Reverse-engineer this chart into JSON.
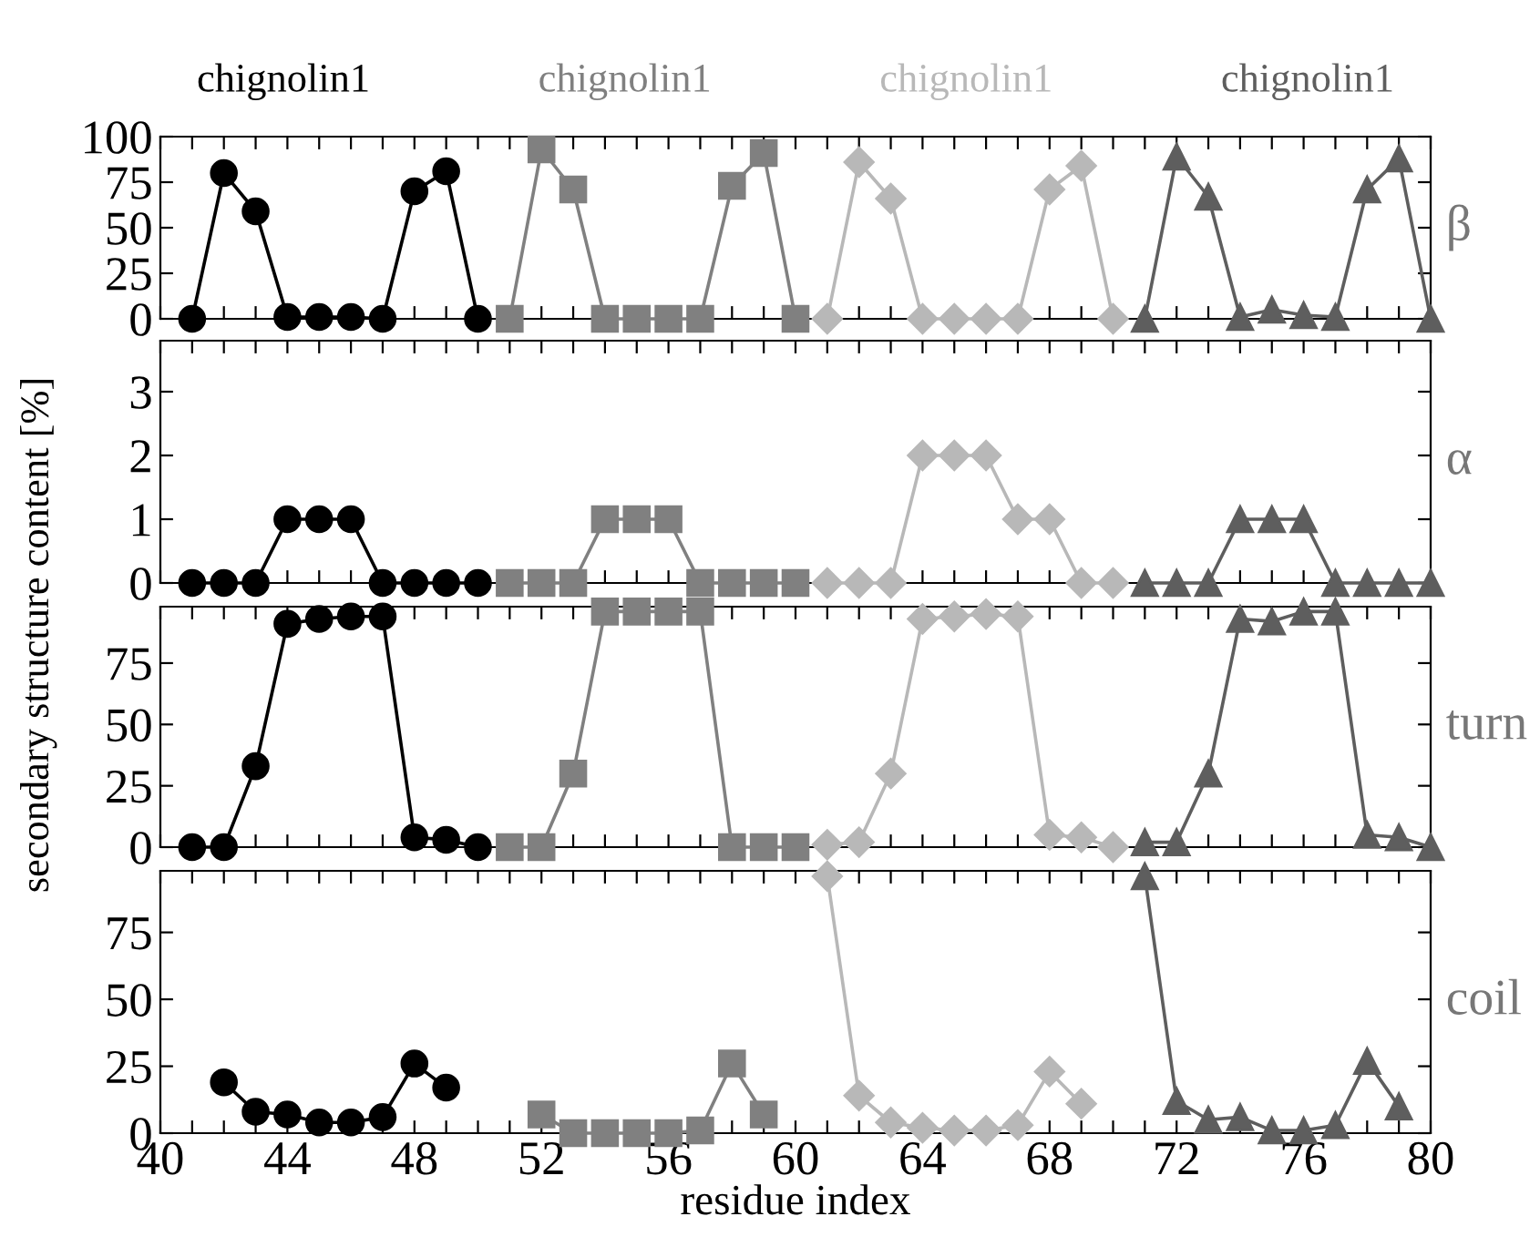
{
  "chart_data": [
    {
      "type": "line",
      "ylabel": "secondary structure content [%]",
      "annotations": [
        "β"
      ],
      "xlim": [
        40,
        80
      ],
      "ylim": [
        0,
        100
      ],
      "yticks": [
        0,
        25,
        50,
        75,
        100
      ],
      "tick_labels": "y",
      "grid": false,
      "legend": "top",
      "xticks": [
        40,
        {
          "value": 41,
          "label": null
        },
        {
          "value": 42,
          "label": null
        },
        {
          "value": 43,
          "label": null
        },
        44,
        {
          "value": 45,
          "label": null
        },
        {
          "value": 46,
          "label": null
        },
        {
          "value": 47,
          "label": null
        },
        48,
        {
          "value": 49,
          "label": null
        },
        {
          "value": 50,
          "label": null
        },
        {
          "value": 51,
          "label": null
        },
        52,
        {
          "value": 53,
          "label": null
        },
        {
          "value": 54,
          "label": null
        },
        {
          "value": 55,
          "label": null
        },
        56,
        {
          "value": 57,
          "label": null
        },
        {
          "value": 58,
          "label": null
        },
        {
          "value": 59,
          "label": null
        },
        60,
        {
          "value": 61,
          "label": null
        },
        {
          "value": 62,
          "label": null
        },
        {
          "value": 63,
          "label": null
        },
        64,
        {
          "value": 65,
          "label": null
        },
        {
          "value": 66,
          "label": null
        },
        {
          "value": 67,
          "label": null
        },
        68,
        {
          "value": 69,
          "label": null
        },
        {
          "value": 70,
          "label": null
        },
        {
          "value": 71,
          "label": null
        },
        72,
        {
          "value": 73,
          "label": null
        },
        {
          "value": 74,
          "label": null
        },
        {
          "value": 75,
          "label": null
        },
        76,
        {
          "value": 77,
          "label": null
        },
        {
          "value": 78,
          "label": null
        },
        {
          "value": 79,
          "label": null
        },
        80
      ],
      "series": [
        {
          "name": "chignolin1",
          "color": "#000000",
          "marker": "circle",
          "x": [
            41,
            42,
            43,
            44,
            45,
            46,
            47,
            48,
            49,
            50
          ],
          "values": [
            0,
            80,
            59,
            1,
            1,
            1,
            0,
            70,
            81,
            0
          ]
        },
        {
          "name": "chignolin1",
          "color": "#808080",
          "marker": "square",
          "x": [
            51,
            52,
            53,
            54,
            55,
            56,
            57,
            58,
            59,
            60
          ],
          "values": [
            0,
            93,
            71,
            0,
            0,
            0,
            0,
            73,
            91,
            0
          ]
        },
        {
          "name": "chignolin1",
          "color": "#b8b8b8",
          "marker": "diamond",
          "x": [
            61,
            62,
            63,
            64,
            65,
            66,
            67,
            68,
            69,
            70
          ],
          "values": [
            0,
            86,
            66,
            0,
            0,
            0,
            0,
            71,
            84,
            0
          ]
        },
        {
          "name": "chignolin1",
          "color": "#5e5e5e",
          "marker": "triangle",
          "x": [
            71,
            72,
            73,
            74,
            75,
            76,
            77,
            78,
            79,
            80
          ],
          "values": [
            0,
            89,
            67,
            1,
            5,
            2,
            1,
            71,
            88,
            0
          ]
        }
      ]
    },
    {
      "type": "line",
      "annotations": [
        "α"
      ],
      "xlim": [
        40,
        80
      ],
      "ylim": [
        0,
        3.8
      ],
      "yticks": [
        0,
        1,
        2,
        3
      ],
      "tick_labels": "y",
      "grid": false,
      "legend": false,
      "xticks": [
        40,
        {
          "value": 41,
          "label": null
        },
        {
          "value": 42,
          "label": null
        },
        {
          "value": 43,
          "label": null
        },
        44,
        {
          "value": 45,
          "label": null
        },
        {
          "value": 46,
          "label": null
        },
        {
          "value": 47,
          "label": null
        },
        48,
        {
          "value": 49,
          "label": null
        },
        {
          "value": 50,
          "label": null
        },
        {
          "value": 51,
          "label": null
        },
        52,
        {
          "value": 53,
          "label": null
        },
        {
          "value": 54,
          "label": null
        },
        {
          "value": 55,
          "label": null
        },
        56,
        {
          "value": 57,
          "label": null
        },
        {
          "value": 58,
          "label": null
        },
        {
          "value": 59,
          "label": null
        },
        60,
        {
          "value": 61,
          "label": null
        },
        {
          "value": 62,
          "label": null
        },
        {
          "value": 63,
          "label": null
        },
        64,
        {
          "value": 65,
          "label": null
        },
        {
          "value": 66,
          "label": null
        },
        {
          "value": 67,
          "label": null
        },
        68,
        {
          "value": 69,
          "label": null
        },
        {
          "value": 70,
          "label": null
        },
        {
          "value": 71,
          "label": null
        },
        72,
        {
          "value": 73,
          "label": null
        },
        {
          "value": 74,
          "label": null
        },
        {
          "value": 75,
          "label": null
        },
        76,
        {
          "value": 77,
          "label": null
        },
        {
          "value": 78,
          "label": null
        },
        {
          "value": 79,
          "label": null
        },
        80
      ],
      "series": [
        {
          "color": "#000000",
          "marker": "circle",
          "x": [
            41,
            42,
            43,
            44,
            45,
            46,
            47,
            48,
            49,
            50
          ],
          "values": [
            0,
            0,
            0,
            1,
            1,
            1,
            0,
            0,
            0,
            0
          ]
        },
        {
          "color": "#808080",
          "marker": "square",
          "x": [
            51,
            52,
            53,
            54,
            55,
            56,
            57,
            58,
            59,
            60
          ],
          "values": [
            0,
            0,
            0,
            1,
            1,
            1,
            0,
            0,
            0,
            0
          ]
        },
        {
          "color": "#b8b8b8",
          "marker": "diamond",
          "x": [
            61,
            62,
            63,
            64,
            65,
            66,
            67,
            68,
            69,
            70
          ],
          "values": [
            0,
            0,
            0,
            2,
            2,
            2,
            1,
            1,
            0,
            0
          ]
        },
        {
          "color": "#5e5e5e",
          "marker": "triangle",
          "x": [
            71,
            72,
            73,
            74,
            75,
            76,
            77,
            78,
            79,
            80
          ],
          "values": [
            0,
            0,
            0,
            1,
            1,
            1,
            0,
            0,
            0,
            0
          ]
        }
      ]
    },
    {
      "type": "line",
      "annotations": [
        "turn"
      ],
      "xlim": [
        40,
        80
      ],
      "ylim": [
        0,
        98
      ],
      "yticks": [
        0,
        25,
        50,
        75
      ],
      "tick_labels": "y",
      "grid": false,
      "legend": false,
      "xticks": [
        40,
        {
          "value": 41,
          "label": null
        },
        {
          "value": 42,
          "label": null
        },
        {
          "value": 43,
          "label": null
        },
        44,
        {
          "value": 45,
          "label": null
        },
        {
          "value": 46,
          "label": null
        },
        {
          "value": 47,
          "label": null
        },
        48,
        {
          "value": 49,
          "label": null
        },
        {
          "value": 50,
          "label": null
        },
        {
          "value": 51,
          "label": null
        },
        52,
        {
          "value": 53,
          "label": null
        },
        {
          "value": 54,
          "label": null
        },
        {
          "value": 55,
          "label": null
        },
        56,
        {
          "value": 57,
          "label": null
        },
        {
          "value": 58,
          "label": null
        },
        {
          "value": 59,
          "label": null
        },
        60,
        {
          "value": 61,
          "label": null
        },
        {
          "value": 62,
          "label": null
        },
        {
          "value": 63,
          "label": null
        },
        64,
        {
          "value": 65,
          "label": null
        },
        {
          "value": 66,
          "label": null
        },
        {
          "value": 67,
          "label": null
        },
        68,
        {
          "value": 69,
          "label": null
        },
        {
          "value": 70,
          "label": null
        },
        {
          "value": 71,
          "label": null
        },
        72,
        {
          "value": 73,
          "label": null
        },
        {
          "value": 74,
          "label": null
        },
        {
          "value": 75,
          "label": null
        },
        76,
        {
          "value": 77,
          "label": null
        },
        {
          "value": 78,
          "label": null
        },
        {
          "value": 79,
          "label": null
        },
        80
      ],
      "series": [
        {
          "color": "#000000",
          "marker": "circle",
          "x": [
            41,
            42,
            43,
            44,
            45,
            46,
            47,
            48,
            49,
            50
          ],
          "values": [
            0,
            0,
            33,
            91,
            93,
            94,
            94,
            4,
            3,
            0
          ]
        },
        {
          "color": "#808080",
          "marker": "square",
          "x": [
            51,
            52,
            53,
            54,
            55,
            56,
            57,
            58,
            59,
            60
          ],
          "values": [
            0,
            0,
            30,
            96,
            96,
            96,
            96,
            0,
            0,
            0
          ]
        },
        {
          "color": "#b8b8b8",
          "marker": "diamond",
          "x": [
            61,
            62,
            63,
            64,
            65,
            66,
            67,
            68,
            69,
            70
          ],
          "values": [
            1,
            2,
            30,
            93,
            94,
            95,
            94,
            5,
            4,
            0
          ]
        },
        {
          "color": "#5e5e5e",
          "marker": "triangle",
          "x": [
            71,
            72,
            73,
            74,
            75,
            76,
            77,
            78,
            79,
            80
          ],
          "values": [
            2,
            2,
            30,
            93,
            92,
            96,
            96,
            5,
            4,
            0
          ]
        }
      ]
    },
    {
      "type": "line",
      "xlabel": "residue index",
      "annotations": [
        "coil"
      ],
      "xlim": [
        40,
        80
      ],
      "ylim": [
        0,
        98
      ],
      "yticks": [
        0,
        25,
        50,
        75
      ],
      "grid": false,
      "legend": false,
      "xticks": [
        40,
        {
          "value": 41,
          "label": null
        },
        {
          "value": 42,
          "label": null
        },
        {
          "value": 43,
          "label": null
        },
        44,
        {
          "value": 45,
          "label": null
        },
        {
          "value": 46,
          "label": null
        },
        {
          "value": 47,
          "label": null
        },
        48,
        {
          "value": 49,
          "label": null
        },
        {
          "value": 50,
          "label": null
        },
        {
          "value": 51,
          "label": null
        },
        52,
        {
          "value": 53,
          "label": null
        },
        {
          "value": 54,
          "label": null
        },
        {
          "value": 55,
          "label": null
        },
        56,
        {
          "value": 57,
          "label": null
        },
        {
          "value": 58,
          "label": null
        },
        {
          "value": 59,
          "label": null
        },
        60,
        {
          "value": 61,
          "label": null
        },
        {
          "value": 62,
          "label": null
        },
        {
          "value": 63,
          "label": null
        },
        64,
        {
          "value": 65,
          "label": null
        },
        {
          "value": 66,
          "label": null
        },
        {
          "value": 67,
          "label": null
        },
        68,
        {
          "value": 69,
          "label": null
        },
        {
          "value": 70,
          "label": null
        },
        {
          "value": 71,
          "label": null
        },
        72,
        {
          "value": 73,
          "label": null
        },
        {
          "value": 74,
          "label": null
        },
        {
          "value": 75,
          "label": null
        },
        76,
        {
          "value": 77,
          "label": null
        },
        {
          "value": 78,
          "label": null
        },
        {
          "value": 79,
          "label": null
        },
        80
      ],
      "series": [
        {
          "color": "#000000",
          "marker": "circle",
          "x": [
            42,
            43,
            44,
            45,
            46,
            47,
            48,
            49
          ],
          "values": [
            19,
            8,
            7,
            4,
            4,
            6,
            26,
            17
          ]
        },
        {
          "color": "#808080",
          "marker": "square",
          "x": [
            52,
            53,
            54,
            55,
            56,
            57,
            58,
            59
          ],
          "values": [
            7,
            0,
            0,
            0,
            0,
            1,
            26,
            7
          ]
        },
        {
          "color": "#b8b8b8",
          "marker": "diamond",
          "x": [
            61,
            62,
            63,
            64,
            65,
            66,
            67,
            68,
            69
          ],
          "values": [
            96,
            14,
            4,
            2,
            1,
            1,
            3,
            23,
            11
          ]
        },
        {
          "color": "#5e5e5e",
          "marker": "triangle",
          "x": [
            71,
            72,
            73,
            74,
            75,
            76,
            77,
            78,
            79
          ],
          "values": [
            96,
            12,
            5,
            6,
            1,
            1,
            3,
            27,
            10
          ]
        }
      ]
    }
  ]
}
